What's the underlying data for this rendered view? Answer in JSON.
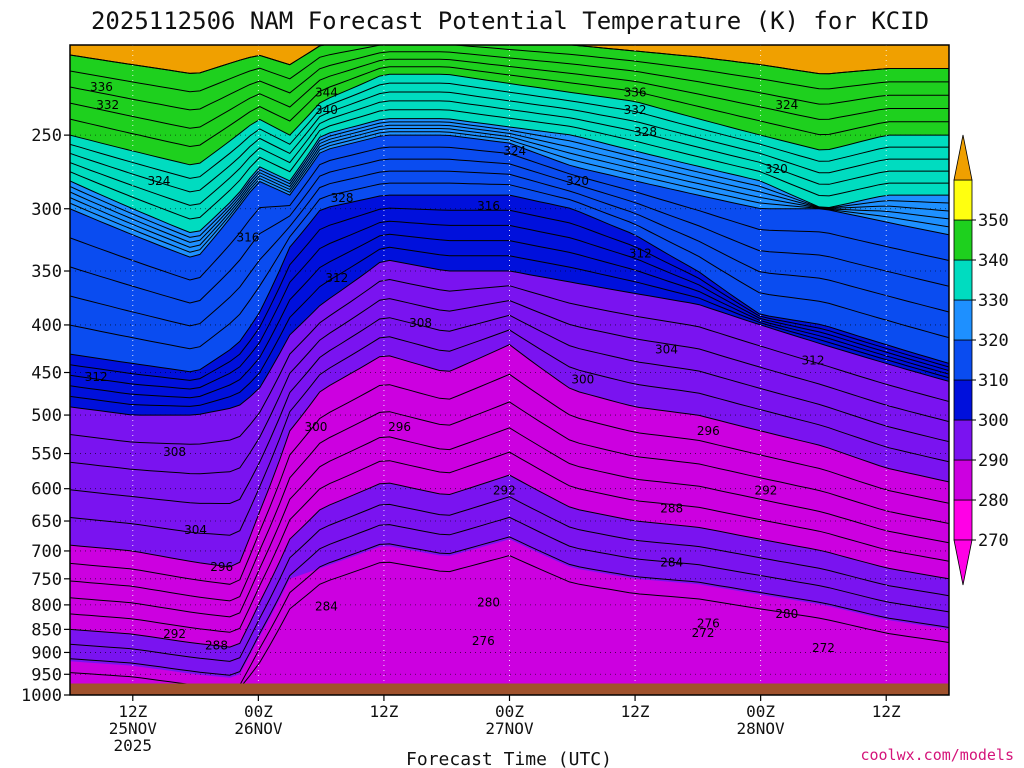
{
  "title": "2025112506 NAM Forecast Potential Temperature (K) for KCID",
  "credit": "coolwx.com/models",
  "chart_data": {
    "type": "contour",
    "title": "2025112506 NAM Forecast Potential Temperature (K) for KCID",
    "xlabel": "Forecast Time (UTC)",
    "ylabel": "",
    "y_axis": {
      "scale": "log",
      "inverted": true,
      "range_hpa": [
        1000,
        200
      ],
      "ticks": [
        250,
        300,
        350,
        400,
        450,
        500,
        550,
        600,
        650,
        700,
        750,
        800,
        850,
        900,
        950,
        1000
      ]
    },
    "x_axis": {
      "range_hours": [
        0,
        84
      ],
      "ticks": [
        {
          "hour": 6,
          "lines": [
            "12Z",
            "25NOV",
            "2025"
          ]
        },
        {
          "hour": 18,
          "lines": [
            "00Z",
            "26NOV"
          ]
        },
        {
          "hour": 30,
          "lines": [
            "12Z"
          ]
        },
        {
          "hour": 42,
          "lines": [
            "00Z",
            "27NOV"
          ]
        },
        {
          "hour": 54,
          "lines": [
            "12Z"
          ]
        },
        {
          "hour": 66,
          "lines": [
            "00Z",
            "28NOV"
          ]
        },
        {
          "hour": 78,
          "lines": [
            "12Z"
          ]
        }
      ]
    },
    "grid": true,
    "ground_color": "#a0522d",
    "colorbar": {
      "placement": "right",
      "boundaries": [
        270,
        280,
        290,
        300,
        310,
        320,
        330,
        340,
        350
      ],
      "labels": [
        "270",
        "280",
        "290",
        "300",
        "310",
        "320",
        "330",
        "340",
        "350"
      ],
      "colors": [
        "#ff00e6",
        "#cc00e0",
        "#7a13f0",
        "#0010dc",
        "#0a4cf0",
        "#1e90ff",
        "#00dcc0",
        "#1ed01e",
        "#ffff10"
      ],
      "under_color": "#ff00e6",
      "over_color": "#f0a000"
    },
    "isotherm_interval_k": 2,
    "times_h": [
      0,
      6,
      12,
      16,
      18,
      21,
      24,
      30,
      36,
      42,
      48,
      54,
      60,
      66,
      72,
      78,
      84
    ],
    "levels": [
      {
        "value": 290,
        "pres": [
          690,
          700,
          720,
          730,
          640,
          520,
          470,
          430,
          450,
          420,
          470,
          490,
          500,
          520,
          540,
          570,
          590
        ]
      },
      {
        "value": 300,
        "pres": [
          490,
          500,
          500,
          490,
          470,
          410,
          380,
          340,
          350,
          350,
          360,
          370,
          380,
          400,
          420,
          440,
          460
        ]
      },
      {
        "value": 310,
        "pres": [
          430,
          440,
          450,
          420,
          390,
          330,
          300,
          290,
          290,
          290,
          300,
          320,
          350,
          390,
          400,
          420,
          440
        ]
      },
      {
        "value": 320,
        "pres": [
          300,
          320,
          340,
          300,
          280,
          290,
          260,
          250,
          250,
          255,
          270,
          280,
          290,
          300,
          300,
          310,
          320
        ]
      },
      {
        "value": 330,
        "pres": [
          280,
          300,
          320,
          290,
          270,
          280,
          250,
          240,
          240,
          245,
          250,
          260,
          270,
          280,
          300,
          290,
          290
        ]
      },
      {
        "value": 340,
        "pres": [
          250,
          260,
          270,
          250,
          240,
          250,
          230,
          215,
          215,
          220,
          225,
          230,
          240,
          250,
          260,
          250,
          250
        ]
      },
      {
        "value": 350,
        "pres": [
          205,
          210,
          215,
          208,
          205,
          210,
          200,
          196,
          196,
          198,
          200,
          203,
          206,
          210,
          215,
          212,
          212
        ]
      }
    ],
    "surface_pres": [
      970,
      970,
      970,
      970,
      970,
      970,
      970,
      970,
      970,
      970,
      970,
      972,
      972,
      972,
      972,
      972,
      972
    ],
    "contour_labels": [
      {
        "value": 336,
        "hour": 3.0,
        "pres": 222
      },
      {
        "value": 332,
        "hour": 3.6,
        "pres": 232
      },
      {
        "value": 344,
        "hour": 24.5,
        "pres": 225
      },
      {
        "value": 340,
        "hour": 24.5,
        "pres": 235
      },
      {
        "value": 336,
        "hour": 54.0,
        "pres": 225
      },
      {
        "value": 332,
        "hour": 54.0,
        "pres": 235
      },
      {
        "value": 328,
        "hour": 55.0,
        "pres": 248
      },
      {
        "value": 324,
        "hour": 68.5,
        "pres": 232
      },
      {
        "value": 324,
        "hour": 42.5,
        "pres": 260
      },
      {
        "value": 320,
        "hour": 48.5,
        "pres": 280
      },
      {
        "value": 320,
        "hour": 67.5,
        "pres": 272
      },
      {
        "value": 324,
        "hour": 8.5,
        "pres": 280
      },
      {
        "value": 328,
        "hour": 26.0,
        "pres": 292
      },
      {
        "value": 316,
        "hour": 40.0,
        "pres": 298
      },
      {
        "value": 316,
        "hour": 17.0,
        "pres": 322
      },
      {
        "value": 312,
        "hour": 54.5,
        "pres": 335
      },
      {
        "value": 312,
        "hour": 25.5,
        "pres": 356
      },
      {
        "value": 308,
        "hour": 33.5,
        "pres": 398
      },
      {
        "value": 304,
        "hour": 57.0,
        "pres": 425
      },
      {
        "value": 312,
        "hour": 71.0,
        "pres": 437
      },
      {
        "value": 312,
        "hour": 2.5,
        "pres": 455
      },
      {
        "value": 300,
        "hour": 49.0,
        "pres": 458
      },
      {
        "value": 300,
        "hour": 23.5,
        "pres": 515
      },
      {
        "value": 296,
        "hour": 31.5,
        "pres": 515
      },
      {
        "value": 296,
        "hour": 61.0,
        "pres": 520
      },
      {
        "value": 308,
        "hour": 10.0,
        "pres": 548
      },
      {
        "value": 292,
        "hour": 41.5,
        "pres": 603
      },
      {
        "value": 292,
        "hour": 66.5,
        "pres": 603
      },
      {
        "value": 288,
        "hour": 57.5,
        "pres": 630
      },
      {
        "value": 304,
        "hour": 12.0,
        "pres": 665
      },
      {
        "value": 284,
        "hour": 57.5,
        "pres": 720
      },
      {
        "value": 296,
        "hour": 14.5,
        "pres": 728
      },
      {
        "value": 280,
        "hour": 40.0,
        "pres": 795
      },
      {
        "value": 280,
        "hour": 68.5,
        "pres": 818
      },
      {
        "value": 284,
        "hour": 24.5,
        "pres": 803
      },
      {
        "value": 276,
        "hour": 61.0,
        "pres": 838
      },
      {
        "value": 292,
        "hour": 10.0,
        "pres": 860
      },
      {
        "value": 272,
        "hour": 60.5,
        "pres": 858
      },
      {
        "value": 276,
        "hour": 39.5,
        "pres": 875
      },
      {
        "value": 288,
        "hour": 14.0,
        "pres": 885
      },
      {
        "value": 272,
        "hour": 72.0,
        "pres": 890
      }
    ]
  }
}
